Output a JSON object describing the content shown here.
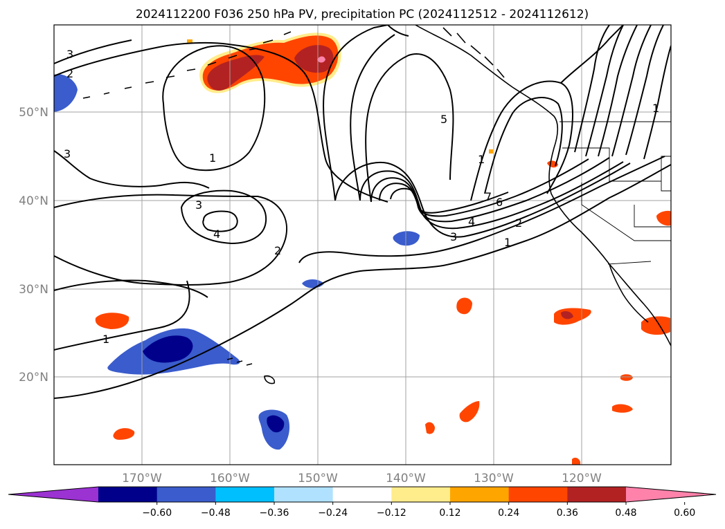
{
  "title": "2024112200 F036 250 hPa PV, precipitation PC (2024112512 - 2024112612)",
  "lat_labels": [
    "50°N",
    "40°N",
    "30°N",
    "20°N"
  ],
  "lon_labels": [
    "170°W",
    "160°W",
    "150°W",
    "140°W",
    "130°W",
    "120°W"
  ],
  "colorbar": {
    "ticks": [
      "−0.60",
      "−0.48",
      "−0.36",
      "−0.24",
      "−0.12",
      "0.12",
      "0.24",
      "0.36",
      "0.48",
      "0.60"
    ],
    "colors": [
      "#9b32d2",
      "#00008b",
      "#3a5ccc",
      "#00bfff",
      "#b0e2ff",
      "#ffffff",
      "#ffec8b",
      "#ffa500",
      "#ff4500",
      "#b22222",
      "#ff82ab"
    ]
  },
  "contour_labels": [
    "3",
    "2",
    "3",
    "3",
    "4",
    "1",
    "2",
    "1",
    "1",
    "5",
    "7",
    "6",
    "4",
    "3",
    "2",
    "1",
    "1"
  ]
}
